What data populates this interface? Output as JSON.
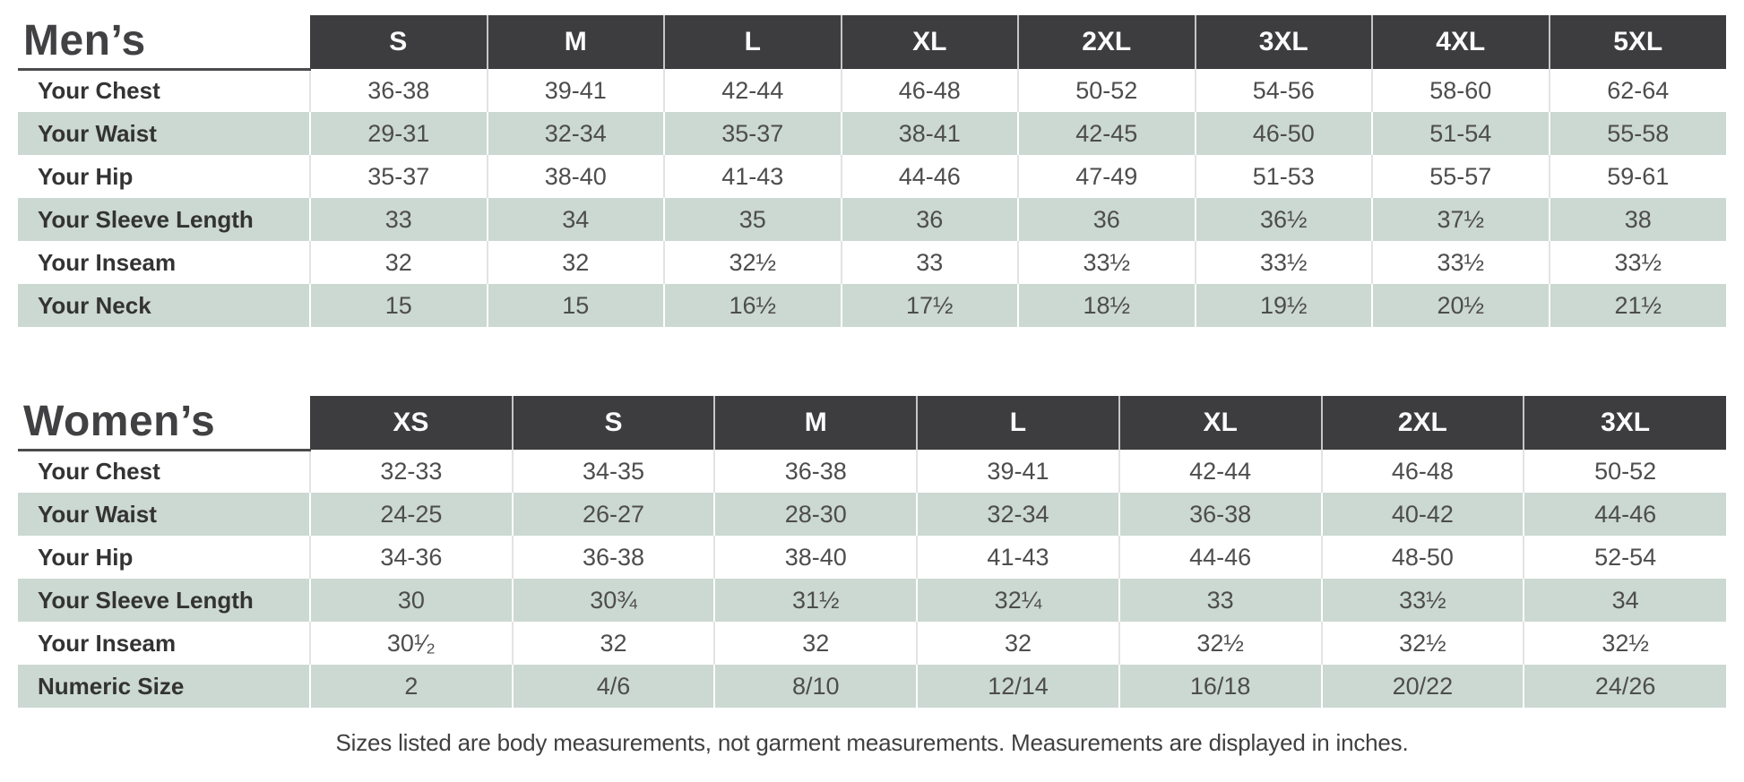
{
  "colors": {
    "header_bg": "#3d3d3f",
    "header_text": "#fbfbfb",
    "stripe_bg": "#ccd8d2",
    "title_text": "#414042",
    "underline": "#4b4b4d",
    "label_text": "#333333",
    "value_text": "#4d4d4d"
  },
  "chart_data": [
    {
      "type": "table",
      "title": "Men’s",
      "columns": [
        "S",
        "M",
        "L",
        "XL",
        "2XL",
        "3XL",
        "4XL",
        "5XL"
      ],
      "rows": [
        {
          "label": "Your Chest",
          "values": [
            "36-38",
            "39-41",
            "42-44",
            "46-48",
            "50-52",
            "54-56",
            "58-60",
            "62-64"
          ]
        },
        {
          "label": "Your Waist",
          "values": [
            "29-31",
            "32-34",
            "35-37",
            "38-41",
            "42-45",
            "46-50",
            "51-54",
            "55-58"
          ]
        },
        {
          "label": "Your Hip",
          "values": [
            "35-37",
            "38-40",
            "41-43",
            "44-46",
            "47-49",
            "51-53",
            "55-57",
            "59-61"
          ]
        },
        {
          "label": "Your Sleeve Length",
          "values": [
            "33",
            "34",
            "35",
            "36",
            "36",
            "36½",
            "37½",
            "38"
          ]
        },
        {
          "label": "Your Inseam",
          "values": [
            "32",
            "32",
            "32½",
            "33",
            "33½",
            "33½",
            "33½",
            "33½"
          ]
        },
        {
          "label": "Your Neck",
          "values": [
            "15",
            "15",
            "16½",
            "17½",
            "18½",
            "19½",
            "20½",
            "21½"
          ]
        }
      ]
    },
    {
      "type": "table",
      "title": "Women’s",
      "columns": [
        "XS",
        "S",
        "M",
        "L",
        "XL",
        "2XL",
        "3XL"
      ],
      "rows": [
        {
          "label": "Your Chest",
          "values": [
            "32-33",
            "34-35",
            "36-38",
            "39-41",
            "42-44",
            "46-48",
            "50-52"
          ]
        },
        {
          "label": "Your Waist",
          "values": [
            "24-25",
            "26-27",
            "28-30",
            "32-34",
            "36-38",
            "40-42",
            "44-46"
          ]
        },
        {
          "label": "Your Hip",
          "values": [
            "34-36",
            "36-38",
            "38-40",
            "41-43",
            "44-46",
            "48-50",
            "52-54"
          ]
        },
        {
          "label": "Your Sleeve Length",
          "values": [
            "30",
            "30¾",
            "31½",
            "32¼",
            "33",
            "33½",
            "34"
          ]
        },
        {
          "label": "Your Inseam",
          "values": [
            "30¹⁄₂",
            "32",
            "32",
            "32",
            "32½",
            "32½",
            "32½"
          ]
        },
        {
          "label": "Numeric Size",
          "values": [
            "2",
            "4/6",
            "8/10",
            "12/14",
            "16/18",
            "20/22",
            "24/26"
          ]
        }
      ]
    }
  ],
  "footer": {
    "note": "Sizes listed are body measurements, not garment measurements. Measurements are displayed in inches."
  }
}
